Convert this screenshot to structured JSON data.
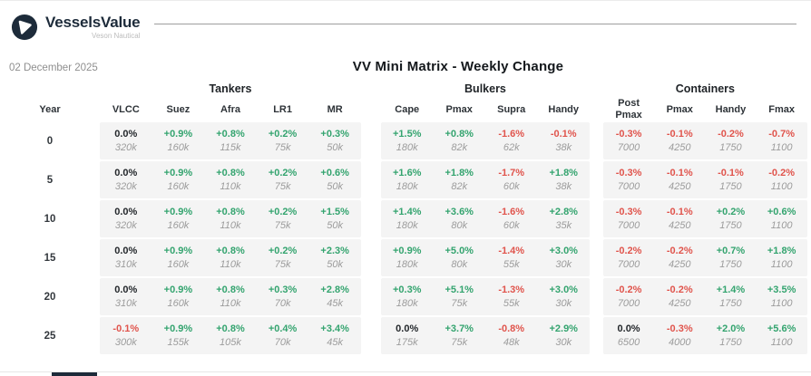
{
  "brand": {
    "name": "VesselsValue",
    "subtitle": "Veson Nautical",
    "logo_icon": "vesselsvalue-circle-triangle"
  },
  "report": {
    "date": "02 December 2025",
    "title": "VV Mini Matrix - Weekly Change"
  },
  "colors": {
    "green": "#34a46f",
    "red": "#e0544c",
    "navy": "#1d2b3a",
    "value_gray": "#9c9c9c",
    "cell_bg": "#f4f4f4"
  },
  "table": {
    "year_label": "Year",
    "groups": [
      {
        "name": "Tankers",
        "columns": [
          "VLCC",
          "Suez",
          "Afra",
          "LR1",
          "MR"
        ]
      },
      {
        "name": "Bulkers",
        "columns": [
          "Cape",
          "Pmax",
          "Supra",
          "Handy"
        ]
      },
      {
        "name": "Containers",
        "columns": [
          "Post Pmax",
          "Pmax",
          "Handy",
          "Fmax"
        ]
      }
    ],
    "rows": [
      {
        "year": "0",
        "groups": [
          {
            "pct": [
              "0.0%",
              "+0.9%",
              "+0.8%",
              "+0.2%",
              "+0.3%"
            ],
            "val": [
              "320k",
              "160k",
              "115k",
              "75k",
              "50k"
            ]
          },
          {
            "pct": [
              "+1.5%",
              "+0.8%",
              "-1.6%",
              "-0.1%"
            ],
            "val": [
              "180k",
              "82k",
              "62k",
              "38k"
            ]
          },
          {
            "pct": [
              "-0.3%",
              "-0.1%",
              "-0.2%",
              "-0.7%"
            ],
            "val": [
              "7000",
              "4250",
              "1750",
              "1100"
            ]
          }
        ]
      },
      {
        "year": "5",
        "groups": [
          {
            "pct": [
              "0.0%",
              "+0.9%",
              "+0.8%",
              "+0.2%",
              "+0.6%"
            ],
            "val": [
              "320k",
              "160k",
              "110k",
              "75k",
              "50k"
            ]
          },
          {
            "pct": [
              "+1.6%",
              "+1.8%",
              "-1.7%",
              "+1.8%"
            ],
            "val": [
              "180k",
              "82k",
              "60k",
              "38k"
            ]
          },
          {
            "pct": [
              "-0.3%",
              "-0.1%",
              "-0.1%",
              "-0.2%"
            ],
            "val": [
              "7000",
              "4250",
              "1750",
              "1100"
            ]
          }
        ]
      },
      {
        "year": "10",
        "groups": [
          {
            "pct": [
              "0.0%",
              "+0.9%",
              "+0.8%",
              "+0.2%",
              "+1.5%"
            ],
            "val": [
              "320k",
              "160k",
              "110k",
              "75k",
              "50k"
            ]
          },
          {
            "pct": [
              "+1.4%",
              "+3.6%",
              "-1.6%",
              "+2.8%"
            ],
            "val": [
              "180k",
              "80k",
              "60k",
              "35k"
            ]
          },
          {
            "pct": [
              "-0.3%",
              "-0.1%",
              "+0.2%",
              "+0.6%"
            ],
            "val": [
              "7000",
              "4250",
              "1750",
              "1100"
            ]
          }
        ]
      },
      {
        "year": "15",
        "groups": [
          {
            "pct": [
              "0.0%",
              "+0.9%",
              "+0.8%",
              "+0.2%",
              "+2.3%"
            ],
            "val": [
              "310k",
              "160k",
              "110k",
              "75k",
              "50k"
            ]
          },
          {
            "pct": [
              "+0.9%",
              "+5.0%",
              "-1.4%",
              "+3.0%"
            ],
            "val": [
              "180k",
              "80k",
              "55k",
              "30k"
            ]
          },
          {
            "pct": [
              "-0.2%",
              "-0.2%",
              "+0.7%",
              "+1.8%"
            ],
            "val": [
              "7000",
              "4250",
              "1750",
              "1100"
            ]
          }
        ]
      },
      {
        "year": "20",
        "groups": [
          {
            "pct": [
              "0.0%",
              "+0.9%",
              "+0.8%",
              "+0.3%",
              "+2.8%"
            ],
            "val": [
              "310k",
              "160k",
              "110k",
              "70k",
              "45k"
            ]
          },
          {
            "pct": [
              "+0.3%",
              "+5.1%",
              "-1.3%",
              "+3.0%"
            ],
            "val": [
              "180k",
              "75k",
              "55k",
              "30k"
            ]
          },
          {
            "pct": [
              "-0.2%",
              "-0.2%",
              "+1.4%",
              "+3.5%"
            ],
            "val": [
              "7000",
              "4250",
              "1750",
              "1100"
            ]
          }
        ]
      },
      {
        "year": "25",
        "groups": [
          {
            "pct": [
              "-0.1%",
              "+0.9%",
              "+0.8%",
              "+0.4%",
              "+3.4%"
            ],
            "val": [
              "300k",
              "155k",
              "105k",
              "70k",
              "45k"
            ]
          },
          {
            "pct": [
              "0.0%",
              "+3.7%",
              "-0.8%",
              "+2.9%"
            ],
            "val": [
              "175k",
              "75k",
              "48k",
              "30k"
            ]
          },
          {
            "pct": [
              "0.0%",
              "-0.3%",
              "+2.0%",
              "+5.6%"
            ],
            "val": [
              "6500",
              "4000",
              "1750",
              "1100"
            ]
          }
        ]
      }
    ]
  }
}
